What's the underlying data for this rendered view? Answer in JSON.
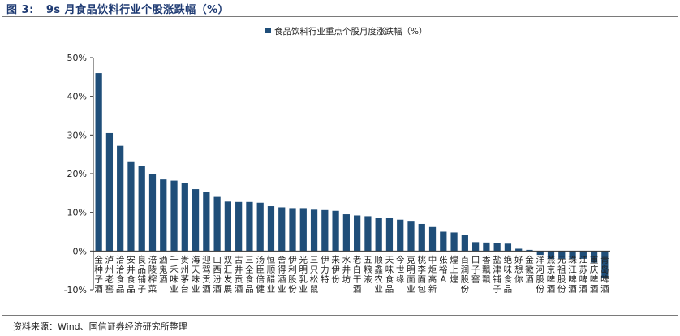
{
  "figure_title": "图 3:   9s 月食品饮料行业个股涨跌幅（%）",
  "source": "资料来源：Wind、国信证券经济研究所整理",
  "colors": {
    "bar": "#1f4e79",
    "axis": "#333333",
    "title": "#1f3b73"
  },
  "chart_data": {
    "type": "bar",
    "title": "",
    "xlabel": "",
    "ylabel": "",
    "ylim": [
      -10,
      50
    ],
    "yticks": [
      -10,
      0,
      10,
      20,
      30,
      40,
      50
    ],
    "ytick_labels": [
      "-10%",
      "0%",
      "10%",
      "20%",
      "30%",
      "40%",
      "50%"
    ],
    "grid": false,
    "legend_position": "top-center",
    "series": [
      {
        "name": "食品饮料行业重点个股月度涨跌幅（%）",
        "values": [
          46,
          30.5,
          27.2,
          23.2,
          22.0,
          20.0,
          18.5,
          18.2,
          17.6,
          16.0,
          15.2,
          14.0,
          12.8,
          12.7,
          12.7,
          12.5,
          11.6,
          11.3,
          11.1,
          11.1,
          10.7,
          10.6,
          10.4,
          9.5,
          9.2,
          9.0,
          8.6,
          8.5,
          8.1,
          7.8,
          7.0,
          6.2,
          5.0,
          4.8,
          4.2,
          2.3,
          2.2,
          2.1,
          1.9,
          0.6,
          0.3,
          -1.0,
          -2.0,
          -2.0,
          -2.0,
          -2.0,
          -3.0,
          -7.0
        ]
      }
    ],
    "categories": [
      "金种子酒",
      "泸州老窖",
      "洽洽食品",
      "安井食品",
      "良品铺子",
      "涪陵榨菜",
      "酒鬼酒",
      "千禾味业",
      "贵州茅台",
      "海天味业",
      "迎驾贡酒",
      "山西汾酒",
      "双汇发展",
      "古井贡酒",
      "三全食品",
      "汤臣倍健",
      "恒顺醋业",
      "舍得酒业",
      "伊利股份",
      "光明乳业",
      "三只松鼠",
      "伊力特",
      "来伊份",
      "水井坊",
      "老白干酒",
      "五粮液",
      "顺鑫农业",
      "天味食品",
      "今世缘",
      "克明面业",
      "桃李面包",
      "中炬高新",
      "张裕A",
      "煌上煌",
      "百润股份",
      "口子窖",
      "香飘飘",
      "盐津铺子",
      "绝味食品",
      "好想你",
      "金徽酒",
      "洋河股份",
      "燕京啤酒",
      "元祖股份",
      "珠江啤酒",
      "江苏啤酒",
      "重庆啤酒",
      "青岛啤酒"
    ]
  }
}
